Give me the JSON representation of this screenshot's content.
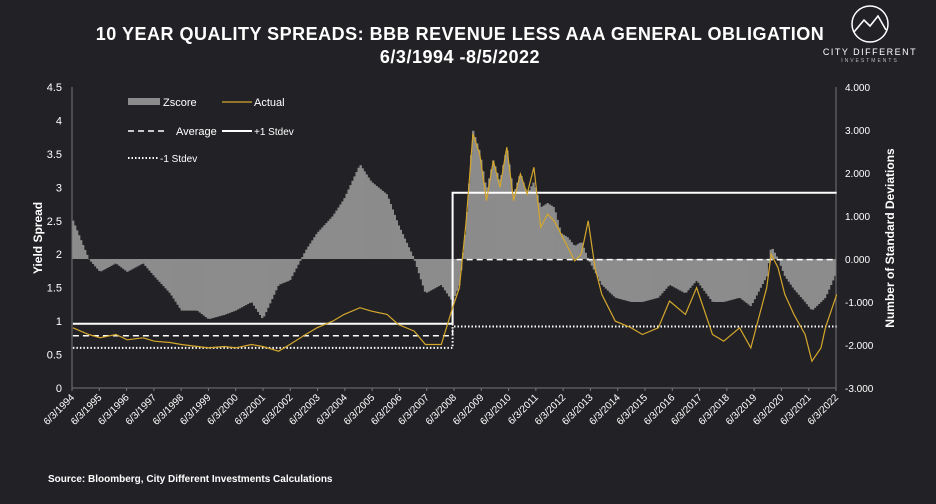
{
  "header": {
    "title_line1": "10 YEAR QUALITY SPREADS: BBB REVENUE LESS AAA GENERAL OBLIGATION",
    "title_line2": "6/3/1994 -8/5/2022"
  },
  "logo": {
    "name": "CITY DIFFERENT",
    "subtitle": "INVESTMENTS"
  },
  "footer": {
    "source": "Source: Bloomberg, City Different Investments Calculations"
  },
  "colors": {
    "background": "#222226",
    "actual": "#d4a72c",
    "zscore": "#8c8c8c",
    "lines": "#ffffff"
  },
  "chart_data": {
    "type": "line",
    "xlabel": "",
    "ylabel": "Yield Spread",
    "y2label": "Number of Standard Deviations",
    "ylim": [
      0,
      4.5
    ],
    "y2lim": [
      -3.0,
      4.0
    ],
    "y_ticks": [
      "0",
      "0.5",
      "1",
      "1.5",
      "2",
      "2.5",
      "3",
      "3.5",
      "4",
      "4.5"
    ],
    "y2_ticks": [
      "-3.000",
      "-2.000",
      "-1.000",
      "0.000",
      "1.000",
      "2.000",
      "3.000",
      "4.000"
    ],
    "x_ticks": [
      "6/3/1994",
      "6/3/1995",
      "6/3/1996",
      "6/3/1997",
      "6/3/1998",
      "6/3/1999",
      "6/3/2000",
      "6/3/2001",
      "6/3/2002",
      "6/3/2003",
      "6/3/2004",
      "6/3/2005",
      "6/3/2006",
      "6/3/2007",
      "6/3/2008",
      "6/3/2009",
      "6/3/2010",
      "6/3/2011",
      "6/3/2012",
      "6/3/2013",
      "6/3/2014",
      "6/3/2015",
      "6/3/2016",
      "6/3/2017",
      "6/3/2018",
      "6/3/2019",
      "6/3/2020",
      "6/3/2021",
      "6/3/2022"
    ],
    "legend": {
      "placement": "top-left",
      "items": [
        {
          "label": "Zscore",
          "style": "bar"
        },
        {
          "label": "Actual",
          "style": "line"
        },
        {
          "label": "Average",
          "style": "dashed"
        },
        {
          "label": "+1 Stdev",
          "style": "solid"
        },
        {
          "label": "-1 Stdev",
          "style": "dotted"
        }
      ]
    },
    "series": [
      {
        "name": "Actual",
        "axis": "left",
        "x": [
          "1994-06",
          "1995-01",
          "1995-06",
          "1996-01",
          "1996-06",
          "1997-01",
          "1997-06",
          "1998-01",
          "1998-06",
          "1999-01",
          "1999-06",
          "2000-01",
          "2000-06",
          "2001-01",
          "2001-06",
          "2002-01",
          "2002-06",
          "2003-01",
          "2003-06",
          "2004-01",
          "2004-06",
          "2005-01",
          "2005-06",
          "2006-01",
          "2006-06",
          "2007-01",
          "2007-06",
          "2008-01",
          "2008-06",
          "2008-09",
          "2008-12",
          "2009-03",
          "2009-06",
          "2009-09",
          "2009-12",
          "2010-03",
          "2010-06",
          "2010-09",
          "2010-12",
          "2011-03",
          "2011-06",
          "2011-09",
          "2011-12",
          "2012-03",
          "2012-06",
          "2012-09",
          "2012-12",
          "2013-03",
          "2013-06",
          "2013-09",
          "2013-12",
          "2014-06",
          "2015-01",
          "2015-06",
          "2016-01",
          "2016-06",
          "2017-01",
          "2017-06",
          "2018-01",
          "2018-06",
          "2019-01",
          "2019-06",
          "2020-01",
          "2020-03",
          "2020-06",
          "2020-09",
          "2021-01",
          "2021-06",
          "2021-09",
          "2022-01",
          "2022-03",
          "2022-08"
        ],
        "values": [
          0.9,
          0.8,
          0.75,
          0.8,
          0.72,
          0.75,
          0.7,
          0.68,
          0.65,
          0.62,
          0.6,
          0.62,
          0.6,
          0.65,
          0.62,
          0.55,
          0.65,
          0.8,
          0.9,
          1.0,
          1.1,
          1.2,
          1.15,
          1.1,
          0.95,
          0.85,
          0.65,
          0.65,
          1.2,
          1.5,
          2.5,
          3.8,
          3.5,
          2.8,
          3.4,
          3.0,
          3.6,
          2.8,
          3.2,
          2.9,
          3.3,
          2.4,
          2.6,
          2.5,
          2.3,
          2.1,
          1.9,
          2.0,
          2.5,
          1.8,
          1.4,
          1.0,
          0.9,
          0.8,
          0.9,
          1.3,
          1.1,
          1.5,
          0.8,
          0.7,
          0.9,
          0.6,
          1.5,
          2.0,
          1.8,
          1.4,
          1.1,
          0.8,
          0.4,
          0.6,
          0.9,
          1.4
        ]
      },
      {
        "name": "Zscore",
        "axis": "right",
        "x": [
          "1994-06",
          "1995-01",
          "1995-06",
          "1996-01",
          "1996-06",
          "1997-01",
          "1997-06",
          "1998-01",
          "1998-06",
          "1999-01",
          "1999-06",
          "2000-01",
          "2000-06",
          "2001-01",
          "2001-06",
          "2002-01",
          "2002-06",
          "2003-01",
          "2003-06",
          "2004-01",
          "2004-06",
          "2005-01",
          "2005-06",
          "2006-01",
          "2006-06",
          "2007-01",
          "2007-06",
          "2008-01",
          "2008-06",
          "2008-09",
          "2008-12",
          "2009-03",
          "2009-06",
          "2009-09",
          "2009-12",
          "2010-03",
          "2010-06",
          "2010-09",
          "2010-12",
          "2011-03",
          "2011-06",
          "2011-09",
          "2011-12",
          "2012-03",
          "2012-06",
          "2012-09",
          "2012-12",
          "2013-03",
          "2013-06",
          "2013-09",
          "2013-12",
          "2014-06",
          "2015-01",
          "2015-06",
          "2016-01",
          "2016-06",
          "2017-01",
          "2017-06",
          "2018-01",
          "2018-06",
          "2019-01",
          "2019-06",
          "2020-01",
          "2020-03",
          "2020-06",
          "2020-09",
          "2021-01",
          "2021-06",
          "2021-09",
          "2022-01",
          "2022-03",
          "2022-08"
        ],
        "values": [
          0.9,
          0.0,
          -0.3,
          -0.1,
          -0.3,
          -0.1,
          -0.4,
          -0.8,
          -1.2,
          -1.2,
          -1.4,
          -1.3,
          -1.2,
          -1.0,
          -1.4,
          -0.6,
          -0.5,
          0.2,
          0.6,
          1.0,
          1.4,
          2.2,
          1.8,
          1.5,
          0.8,
          0.0,
          -0.8,
          -0.6,
          -1.0,
          -0.6,
          0.8,
          3.0,
          2.5,
          1.6,
          2.3,
          1.8,
          2.6,
          1.5,
          2.0,
          1.5,
          1.8,
          1.2,
          1.3,
          1.2,
          0.6,
          0.5,
          0.3,
          0.4,
          0.0,
          -0.3,
          -0.6,
          -0.9,
          -1.0,
          -1.0,
          -0.9,
          -0.6,
          -0.8,
          -0.5,
          -1.0,
          -1.0,
          -0.9,
          -1.1,
          -0.4,
          0.3,
          0.0,
          -0.4,
          -0.7,
          -1.0,
          -1.2,
          -1.0,
          -0.9,
          -0.3
        ]
      },
      {
        "name": "Average",
        "axis": "left",
        "x": [
          "1994-06",
          "2008-06",
          "2008-06",
          "2022-08"
        ],
        "values": [
          0.78,
          0.78,
          1.92,
          1.92
        ]
      },
      {
        "name": "+1 Stdev",
        "axis": "left",
        "x": [
          "1994-06",
          "2008-06",
          "2008-06",
          "2022-08"
        ],
        "values": [
          0.96,
          0.96,
          2.92,
          2.92
        ]
      },
      {
        "name": "-1 Stdev",
        "axis": "left",
        "x": [
          "1994-06",
          "2008-06",
          "2008-06",
          "2022-08"
        ],
        "values": [
          0.6,
          0.6,
          0.92,
          0.92
        ]
      }
    ]
  }
}
